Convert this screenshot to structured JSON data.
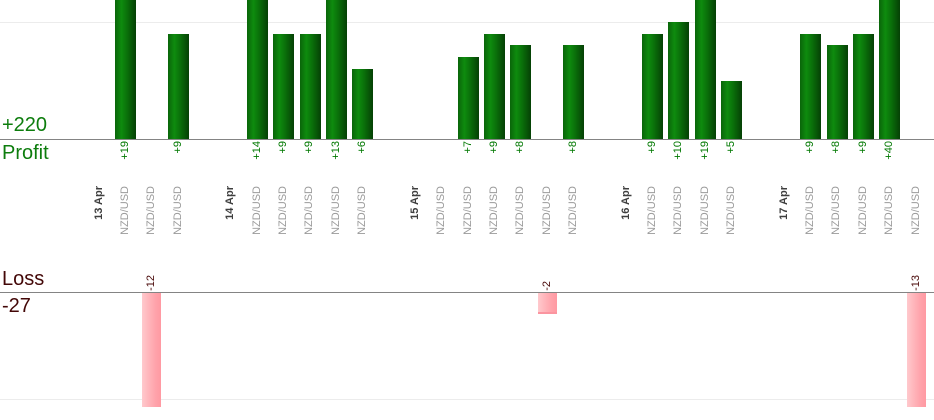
{
  "axis": {
    "profit_total": "+220",
    "profit_label": "Profit",
    "loss_label": "Loss",
    "loss_total": "-27"
  },
  "colors": {
    "profit_bar_green": "#0a730a",
    "loss_bar_pink": "#ffb3b9",
    "profit_text_green": "#0d7d0d",
    "loss_text_maroon": "#430707",
    "value_label_green": "#007800",
    "date_label": "#3e3e3e",
    "symbol_label": "#9b9b9b",
    "axis_line": "#848484",
    "gridline": "#ececec"
  },
  "chart_data": {
    "type": "bar",
    "title": "",
    "ylabel_top": "Profit",
    "ylabel_bottom": "Loss",
    "profit_total_label": "+220",
    "loss_total_label": "-27",
    "grid": true,
    "gridline_interval_units": 10,
    "legend_position": "none",
    "clipping_note": "bars taller than visible area are clipped (profit > ~12, loss > ~11)",
    "groups": [
      {
        "date": "13 Apr",
        "trades": [
          {
            "symbol": "NZD/USD",
            "value": 19,
            "label": "+19"
          },
          {
            "symbol": "NZD/USD",
            "value": -12,
            "label": "-12"
          },
          {
            "symbol": "NZD/USD",
            "value": 9,
            "label": "+9"
          }
        ]
      },
      {
        "date": "14 Apr",
        "trades": [
          {
            "symbol": "NZD/USD",
            "value": 14,
            "label": "+14"
          },
          {
            "symbol": "NZD/USD",
            "value": 9,
            "label": "+9"
          },
          {
            "symbol": "NZD/USD",
            "value": 9,
            "label": "+9"
          },
          {
            "symbol": "NZD/USD",
            "value": 13,
            "label": "+13"
          },
          {
            "symbol": "NZD/USD",
            "value": 6,
            "label": "+6"
          }
        ]
      },
      {
        "date": "15 Apr",
        "trades": [
          {
            "symbol": "NZD/USD",
            "value": 0,
            "label": ""
          },
          {
            "symbol": "NZD/USD",
            "value": 7,
            "label": "+7"
          },
          {
            "symbol": "NZD/USD",
            "value": 9,
            "label": "+9"
          },
          {
            "symbol": "NZD/USD",
            "value": 8,
            "label": "+8"
          },
          {
            "symbol": "NZD/USD",
            "value": -2,
            "label": "-2"
          },
          {
            "symbol": "NZD/USD",
            "value": 8,
            "label": "+8"
          }
        ]
      },
      {
        "date": "16 Apr",
        "trades": [
          {
            "symbol": "NZD/USD",
            "value": 9,
            "label": "+9"
          },
          {
            "symbol": "NZD/USD",
            "value": 10,
            "label": "+10"
          },
          {
            "symbol": "NZD/USD",
            "value": 19,
            "label": "+19"
          },
          {
            "symbol": "NZD/USD",
            "value": 5,
            "label": "+5"
          }
        ]
      },
      {
        "date": "17 Apr",
        "trades": [
          {
            "symbol": "NZD/USD",
            "value": 9,
            "label": "+9"
          },
          {
            "symbol": "NZD/USD",
            "value": 8,
            "label": "+8"
          },
          {
            "symbol": "NZD/USD",
            "value": 9,
            "label": "+9"
          },
          {
            "symbol": "NZD/USD",
            "value": 40,
            "label": "+40"
          },
          {
            "symbol": "NZD/USD",
            "value": -13,
            "label": "-13"
          }
        ]
      }
    ]
  }
}
